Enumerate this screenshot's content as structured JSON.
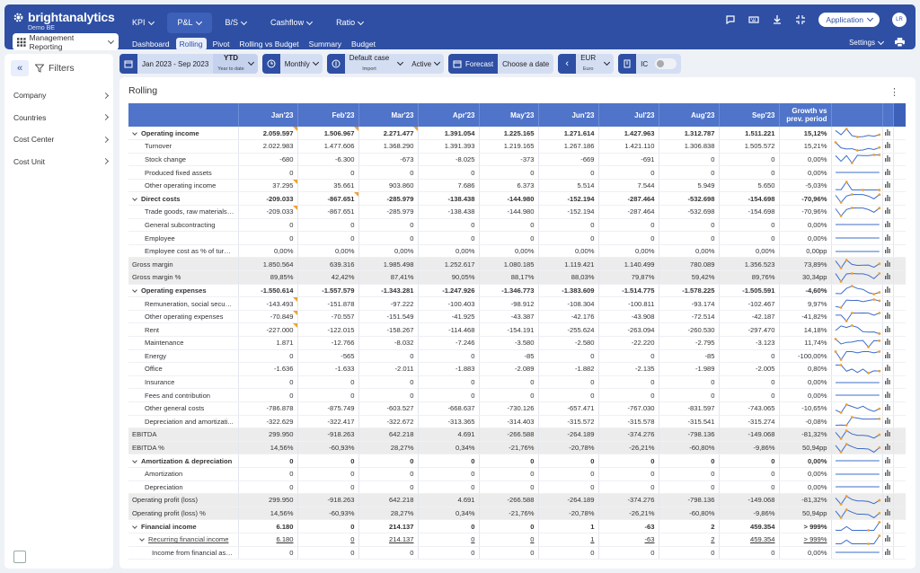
{
  "brand": {
    "name": "brightanalytics",
    "sub": "Demo BE"
  },
  "topnav": [
    {
      "label": "KPI",
      "active": false
    },
    {
      "label": "P&L",
      "active": true
    },
    {
      "label": "B/S",
      "active": false
    },
    {
      "label": "Cashflow",
      "active": false
    },
    {
      "label": "Ratio",
      "active": false
    }
  ],
  "subnav": [
    {
      "label": "Dashboard",
      "active": false
    },
    {
      "label": "Rolling",
      "active": true
    },
    {
      "label": "Pivot",
      "active": false
    },
    {
      "label": "Rolling vs Budget",
      "active": false
    },
    {
      "label": "Summary",
      "active": false
    },
    {
      "label": "Budget",
      "active": false
    }
  ],
  "report_selector": "Management Reporting",
  "application_button": "Application",
  "avatar_initials": "LR",
  "settings_label": "Settings",
  "filters": {
    "title": "Filters",
    "items": [
      "Company",
      "Countries",
      "Cost Center",
      "Cost Unit"
    ]
  },
  "filterbar": {
    "period": "Jan 2023 - Sep 2023",
    "ytd": "YTD",
    "ytd_sub": "Year to date",
    "frequency": "Monthly",
    "scenario": "Default case",
    "scenario_sub": "Import",
    "status": "Active",
    "forecast": "Forecast",
    "choose_date": "Choose a date",
    "currency": "EUR",
    "currency_sub": "Euro",
    "ic": "IC"
  },
  "panel_title": "Rolling",
  "table": {
    "columns": [
      "Jan'23",
      "Feb'23",
      "Mar'23",
      "Apr'23",
      "May'23",
      "Jun'23",
      "Jul'23",
      "Aug'23",
      "Sep'23",
      "Growth vs prev. period"
    ],
    "rows": [
      {
        "label": "Operating income",
        "level": 1,
        "bold": true,
        "caret": true,
        "values": [
          "2.059.597",
          "1.506.967",
          "2.271.477",
          "1.391.054",
          "1.225.165",
          "1.271.614",
          "1.427.963",
          "1.312.787",
          "1.511.221",
          "15,12%"
        ]
      },
      {
        "label": "Turnover",
        "level": 2,
        "values": [
          "2.022.983",
          "1.477.606",
          "1.368.290",
          "1.391.393",
          "1.219.165",
          "1.267.186",
          "1.421.110",
          "1.306.838",
          "1.505.572",
          "15,21%"
        ]
      },
      {
        "label": "Stock change",
        "level": 2,
        "values": [
          "-680",
          "-6.300",
          "-673",
          "-8.025",
          "-373",
          "-669",
          "-691",
          "0",
          "0",
          "0,00%"
        ]
      },
      {
        "label": "Produced fixed assets",
        "level": 2,
        "values": [
          "0",
          "0",
          "0",
          "0",
          "0",
          "0",
          "0",
          "0",
          "0",
          "0,00%"
        ]
      },
      {
        "label": "Other operating income",
        "level": 2,
        "values": [
          "37.295",
          "35.661",
          "903.860",
          "7.686",
          "6.373",
          "5.514",
          "7.544",
          "5.949",
          "5.650",
          "-5,03%"
        ]
      },
      {
        "label": "Direct costs",
        "level": 1,
        "bold": true,
        "caret": true,
        "values": [
          "-209.033",
          "-867.651",
          "-285.979",
          "-138.438",
          "-144.980",
          "-152.194",
          "-287.464",
          "-532.698",
          "-154.698",
          "-70,96%"
        ]
      },
      {
        "label": "Trade goods, raw materials ...",
        "level": 2,
        "values": [
          "-209.033",
          "-867.651",
          "-285.979",
          "-138.438",
          "-144.980",
          "-152.194",
          "-287.464",
          "-532.698",
          "-154.698",
          "-70,96%"
        ]
      },
      {
        "label": "General subcontracting",
        "level": 2,
        "values": [
          "0",
          "0",
          "0",
          "0",
          "0",
          "0",
          "0",
          "0",
          "0",
          "0,00%"
        ]
      },
      {
        "label": "Employee",
        "level": 2,
        "values": [
          "0",
          "0",
          "0",
          "0",
          "0",
          "0",
          "0",
          "0",
          "0",
          "0,00%"
        ]
      },
      {
        "label": "Employee cost as % of turno...",
        "level": 2,
        "values": [
          "0,00%",
          "0,00%",
          "0,00%",
          "0,00%",
          "0,00%",
          "0,00%",
          "0,00%",
          "0,00%",
          "0,00%",
          "0,00pp"
        ]
      },
      {
        "label": "Gross margin",
        "level": 0,
        "grey": true,
        "values": [
          "1.850.564",
          "639.316",
          "1.985.498",
          "1.252.617",
          "1.080.185",
          "1.119.421",
          "1.140.499",
          "780.089",
          "1.356.523",
          "73,89%"
        ]
      },
      {
        "label": "Gross margin %",
        "level": 0,
        "grey": true,
        "values": [
          "89,85%",
          "42,42%",
          "87,41%",
          "90,05%",
          "88,17%",
          "88,03%",
          "79,87%",
          "59,42%",
          "89,76%",
          "30,34pp"
        ]
      },
      {
        "label": "Operating expenses",
        "level": 1,
        "bold": true,
        "caret": true,
        "values": [
          "-1.550.614",
          "-1.557.579",
          "-1.343.281",
          "-1.247.926",
          "-1.346.773",
          "-1.383.609",
          "-1.514.775",
          "-1.578.225",
          "-1.505.591",
          "-4,60%"
        ]
      },
      {
        "label": "Remuneration, social securit...",
        "level": 2,
        "values": [
          "-143.493",
          "-151.878",
          "-97.222",
          "-100.403",
          "-98.912",
          "-108.304",
          "-100.811",
          "-93.174",
          "-102.467",
          "9,97%"
        ]
      },
      {
        "label": "Other operating expenses",
        "level": 2,
        "values": [
          "-70.849",
          "-70.557",
          "-151.549",
          "-41.925",
          "-43.387",
          "-42.176",
          "-43.908",
          "-72.514",
          "-42.187",
          "-41,82%"
        ]
      },
      {
        "label": "Rent",
        "level": 2,
        "values": [
          "-227.000",
          "-122.015",
          "-158.267",
          "-114.468",
          "-154.191",
          "-255.624",
          "-263.094",
          "-260.530",
          "-297.470",
          "14,18%"
        ]
      },
      {
        "label": "Maintenance",
        "level": 2,
        "values": [
          "1.871",
          "-12.766",
          "-8.032",
          "-7.246",
          "-3.580",
          "-2.580",
          "-22.220",
          "-2.795",
          "-3.123",
          "11,74%"
        ]
      },
      {
        "label": "Energy",
        "level": 2,
        "values": [
          "0",
          "-565",
          "0",
          "0",
          "-85",
          "0",
          "0",
          "-85",
          "0",
          "-100,00%"
        ]
      },
      {
        "label": "Office",
        "level": 2,
        "values": [
          "-1.636",
          "-1.633",
          "-2.011",
          "-1.883",
          "-2.089",
          "-1.882",
          "-2.135",
          "-1.989",
          "-2.005",
          "0,80%"
        ]
      },
      {
        "label": "Insurance",
        "level": 2,
        "values": [
          "0",
          "0",
          "0",
          "0",
          "0",
          "0",
          "0",
          "0",
          "0",
          "0,00%"
        ]
      },
      {
        "label": "Fees and contribution",
        "level": 2,
        "values": [
          "0",
          "0",
          "0",
          "0",
          "0",
          "0",
          "0",
          "0",
          "0",
          "0,00%"
        ]
      },
      {
        "label": "Other general costs",
        "level": 2,
        "values": [
          "-786.878",
          "-875.749",
          "-603.527",
          "-668.637",
          "-730.126",
          "-657.471",
          "-767.030",
          "-831.597",
          "-743.065",
          "-10,65%"
        ]
      },
      {
        "label": "Depreciation and amortizati...",
        "level": 2,
        "values": [
          "-322.629",
          "-322.417",
          "-322.672",
          "-313.365",
          "-314.403",
          "-315.572",
          "-315.578",
          "-315.541",
          "-315.274",
          "-0,08%"
        ]
      },
      {
        "label": "EBITDA",
        "level": 0,
        "grey": true,
        "values": [
          "299.950",
          "-918.263",
          "642.218",
          "4.691",
          "-266.588",
          "-264.189",
          "-374.276",
          "-798.136",
          "-149.068",
          "-81,32%"
        ]
      },
      {
        "label": "EBITDA %",
        "level": 0,
        "grey": true,
        "values": [
          "14,56%",
          "-60,93%",
          "28,27%",
          "0,34%",
          "-21,76%",
          "-20,78%",
          "-26,21%",
          "-60,80%",
          "-9,86%",
          "50,94pp"
        ]
      },
      {
        "label": "Amortization & depreciation",
        "level": 1,
        "bold": true,
        "caret": true,
        "values": [
          "0",
          "0",
          "0",
          "0",
          "0",
          "0",
          "0",
          "0",
          "0",
          "0,00%"
        ]
      },
      {
        "label": "Amortization",
        "level": 2,
        "values": [
          "0",
          "0",
          "0",
          "0",
          "0",
          "0",
          "0",
          "0",
          "0",
          "0,00%"
        ]
      },
      {
        "label": "Depreciation",
        "level": 2,
        "values": [
          "0",
          "0",
          "0",
          "0",
          "0",
          "0",
          "0",
          "0",
          "0",
          "0,00%"
        ]
      },
      {
        "label": "Operating profit (loss)",
        "level": 0,
        "grey": true,
        "values": [
          "299.950",
          "-918.263",
          "642.218",
          "4.691",
          "-266.588",
          "-264.189",
          "-374.276",
          "-798.136",
          "-149.068",
          "-81,32%"
        ]
      },
      {
        "label": "Operating profit (loss) %",
        "level": 0,
        "grey": true,
        "values": [
          "14,56%",
          "-60,93%",
          "28,27%",
          "0,34%",
          "-21,76%",
          "-20,78%",
          "-26,21%",
          "-60,80%",
          "-9,86%",
          "50,94pp"
        ]
      },
      {
        "label": "Financial income",
        "level": 1,
        "bold": true,
        "caret": true,
        "values": [
          "6.180",
          "0",
          "214.137",
          "0",
          "0",
          "1",
          "-63",
          "2",
          "459.354",
          "> 999%"
        ]
      },
      {
        "label": "Recurring financial income",
        "level": 2,
        "caret": true,
        "underline": true,
        "values": [
          "6.180",
          "0",
          "214.137",
          "0",
          "0",
          "1",
          "-63",
          "2",
          "459.354",
          "> 999%"
        ]
      },
      {
        "label": "Income from financial ass...",
        "level": 3,
        "values": [
          "0",
          "0",
          "0",
          "0",
          "0",
          "0",
          "0",
          "0",
          "0",
          "0,00%"
        ]
      }
    ]
  },
  "colors": {
    "primary": "#2e4fa3",
    "header": "#4f74c9",
    "spark": "#3d6cc9",
    "spark_marker": "#f0a030",
    "flag": "#f0a030"
  }
}
